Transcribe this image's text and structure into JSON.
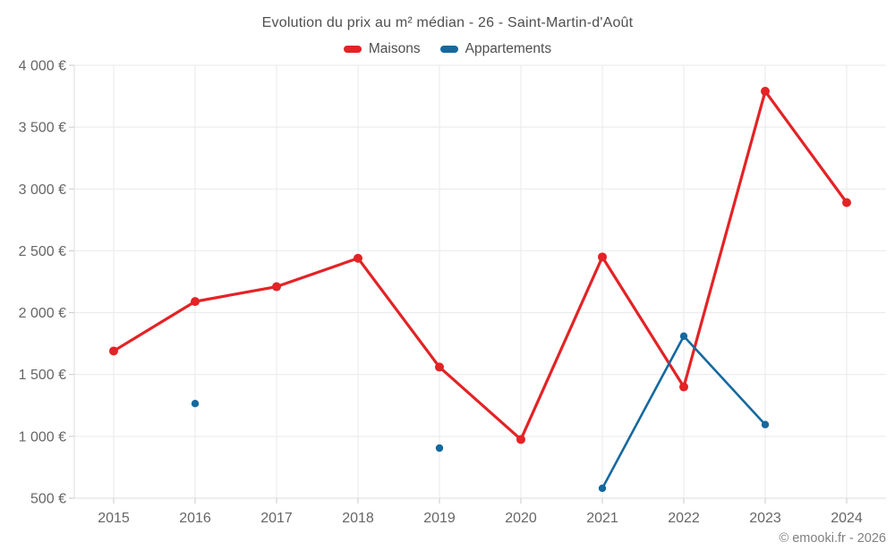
{
  "header": {
    "title": "Evolution du prix au m² médian - 26 - Saint-Martin-d'Août"
  },
  "legend": [
    {
      "label": "Maisons",
      "color": "#e32326"
    },
    {
      "label": "Appartements",
      "color": "#15699e"
    }
  ],
  "footer": {
    "attribution": "© emooki.fr - 2026"
  },
  "chart_data": {
    "type": "line",
    "title": "Evolution du prix au m² médian - 26 - Saint-Martin-d'Août",
    "categories": [
      "2015",
      "2016",
      "2017",
      "2018",
      "2019",
      "2020",
      "2021",
      "2022",
      "2023",
      "2024"
    ],
    "series": [
      {
        "name": "Maisons",
        "color": "#e32326",
        "values": [
          1690,
          2090,
          2210,
          2440,
          1560,
          975,
          2450,
          1400,
          3790,
          2890
        ]
      },
      {
        "name": "Appartements",
        "color": "#15699e",
        "values": [
          null,
          1265,
          null,
          null,
          905,
          null,
          580,
          1810,
          1095,
          null
        ]
      }
    ],
    "ylabel": "",
    "xlabel": "",
    "ylim": [
      500,
      4000
    ],
    "ytick_values": [
      500,
      1000,
      1500,
      2000,
      2500,
      3000,
      3500,
      4000
    ],
    "ytick_labels": [
      "500 €",
      "1 000 €",
      "1 500 €",
      "2 000 €",
      "2 500 €",
      "3 000 €",
      "3 500 €",
      "4 000 €"
    ],
    "grid": true,
    "legend_position": "top"
  }
}
